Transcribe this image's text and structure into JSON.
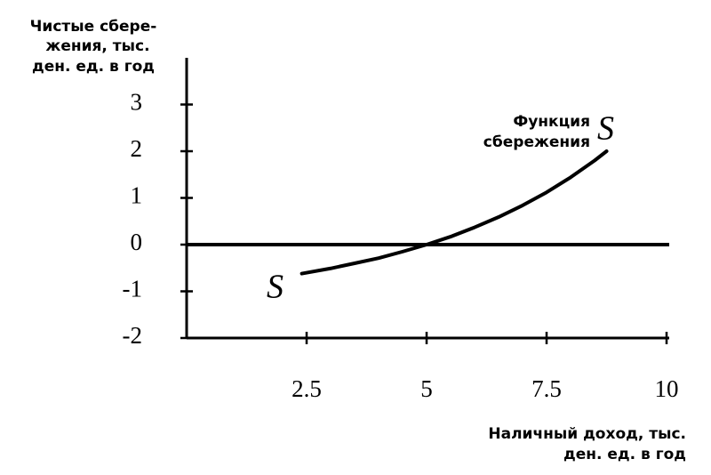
{
  "chart_data": {
    "type": "line",
    "y_axis_title": [
      "Чистые сбере-",
      "жения, тыс.",
      "ден. ед. в год"
    ],
    "x_axis_title": [
      "Наличный доход, тыс.",
      "ден. ед. в год"
    ],
    "curve_label": [
      "Функция",
      "сбережения"
    ],
    "zero_line": true,
    "x": [
      2.4,
      3,
      3.5,
      4,
      4.5,
      5,
      5.5,
      6,
      6.5,
      7,
      7.5,
      8,
      8.5,
      8.75
    ],
    "series": [
      {
        "name": "S",
        "color": "#000000",
        "values": [
          -0.62,
          -0.51,
          -0.4,
          -0.29,
          -0.15,
          0,
          0.17,
          0.37,
          0.59,
          0.84,
          1.12,
          1.44,
          1.8,
          2.0
        ]
      }
    ],
    "xlim": [
      0,
      10
    ],
    "ylim": [
      -2,
      4
    ],
    "xticks": [
      2.5,
      5,
      7.5,
      10
    ],
    "yticks": [
      -2,
      -1,
      0,
      1,
      2,
      3
    ]
  }
}
